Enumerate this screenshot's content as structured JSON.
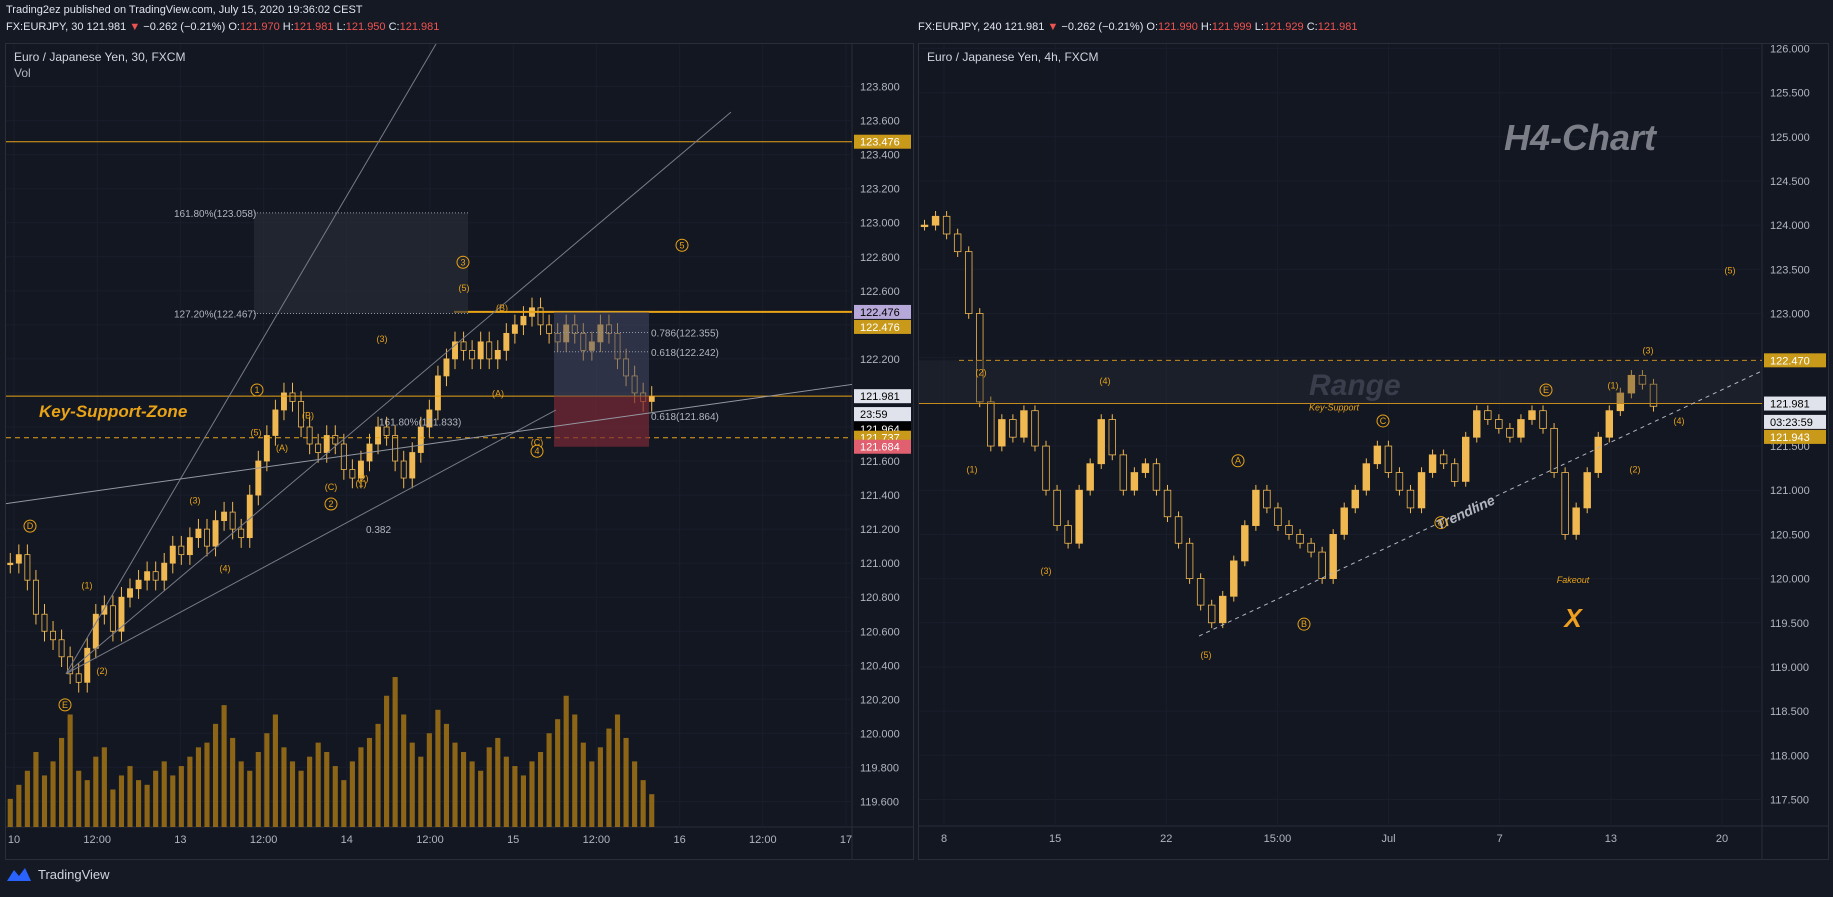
{
  "header": {
    "published": "Trading2ez published on TradingView.com, July 15, 2020 19:36:02 CEST",
    "left": {
      "symbol": "FX:EURJPY, 30",
      "price": "121.981",
      "arrow": "▼",
      "change": "−0.262 (−0.21%)",
      "o_label": "O:",
      "o": "121.970",
      "h_label": "H:",
      "h": "121.981",
      "l_label": "L:",
      "l": "121.950",
      "c_label": "C:",
      "c": "121.981"
    },
    "right": {
      "symbol": "FX:EURJPY, 240",
      "price": "121.981",
      "arrow": "▼",
      "change": "−0.262 (−0.21%)",
      "o_label": "O:",
      "o": "121.990",
      "h_label": "H:",
      "h": "121.999",
      "l_label": "L:",
      "l": "121.929",
      "c_label": "C:",
      "c": "121.981"
    }
  },
  "footer": {
    "brand": "TradingView"
  },
  "colors": {
    "bg": "#131722",
    "grid": "#1e2230",
    "candle": "#f0b850",
    "accent": "#e8a317",
    "text": "#d1d4dc",
    "down": "#ef5350"
  },
  "chart_data": [
    {
      "type": "candlestick",
      "title": "Euro / Japanese Yen, 30, FXCM",
      "subtitle": "Vol",
      "y_ticks": [
        "123.800",
        "123.600",
        "123.400",
        "123.200",
        "123.000",
        "122.800",
        "122.600",
        "122.400",
        "122.200",
        "122.000",
        "121.800",
        "121.600",
        "121.400",
        "121.200",
        "121.000",
        "120.800",
        "120.600",
        "120.400",
        "120.200",
        "120.000",
        "119.800",
        "119.600"
      ],
      "ylim": [
        119.45,
        124.05
      ],
      "x_ticks": [
        "10",
        "12:00",
        "13",
        "12:00",
        "14",
        "12:00",
        "15",
        "12:00",
        "16",
        "12:00",
        "17"
      ],
      "price_labels": [
        {
          "value": 123.476,
          "text": "123.476",
          "color": "#c99a1a"
        },
        {
          "value": 122.476,
          "text": "122.476",
          "color": "#b6a8d8"
        },
        {
          "value": 122.476,
          "text": "122.476",
          "color": "#c99a1a",
          "offset": 1
        },
        {
          "value": 121.981,
          "text": "121.981",
          "color": "#e0e3eb"
        },
        {
          "value": 121.964,
          "text": "23:59",
          "color": "#e0e3eb",
          "offset": 1
        },
        {
          "value": 121.964,
          "text": "121.964",
          "color": "#000000",
          "offset": 2
        },
        {
          "value": 121.964,
          "text": "121.964",
          "color": "#c99a1a",
          "offset": 3
        },
        {
          "value": 121.737,
          "text": "121.737",
          "color": "#c99a1a"
        },
        {
          "value": 121.684,
          "text": "121.684",
          "color": "#e06070"
        }
      ],
      "fib_labels": [
        "161.80%(123.058)",
        "127.20%(122.467)",
        "0.786(122.355)",
        "0.618(122.242)",
        "0.618(121.864)",
        "161.80%(121.833)",
        "0.382"
      ],
      "annotation": "Key-Support-Zone",
      "waves": [
        "D",
        "E",
        "(1)",
        "(2)",
        "(3)",
        "(4)",
        "(5)",
        "1",
        "(A)",
        "(B)",
        "(C)",
        "2",
        "(1)",
        "(2)",
        "(3)",
        "(5)",
        "3",
        "(B)",
        "(A)",
        "4",
        "5",
        "(C)"
      ],
      "series": [
        {
          "values": [
            121.0,
            121.05,
            120.9,
            120.7,
            120.6,
            120.55,
            120.45,
            120.35,
            120.3,
            120.5,
            120.7,
            120.75,
            120.6,
            120.8,
            120.85,
            120.9,
            120.95,
            120.9,
            121.0,
            121.1,
            121.05,
            121.15,
            121.2,
            121.1,
            121.25,
            121.3,
            121.2,
            121.15,
            121.4,
            121.6,
            121.75,
            121.9,
            122.0,
            121.95,
            121.8,
            121.7,
            121.65,
            121.75,
            121.7,
            121.55,
            121.5,
            121.6,
            121.7,
            121.8,
            121.75,
            121.6,
            121.5,
            121.65,
            121.8,
            121.9,
            122.1,
            122.2,
            122.3,
            122.25,
            122.2,
            122.3,
            122.2,
            122.25,
            122.35,
            122.4,
            122.45,
            122.5,
            122.4,
            122.35,
            122.3,
            122.4,
            122.35,
            122.25,
            122.3,
            122.4,
            122.35,
            122.2,
            122.1,
            122.0,
            121.95,
            121.98
          ]
        }
      ],
      "volume": [
        30,
        45,
        60,
        80,
        55,
        70,
        95,
        120,
        60,
        50,
        75,
        85,
        40,
        55,
        65,
        50,
        45,
        60,
        70,
        55,
        65,
        75,
        85,
        90,
        110,
        130,
        95,
        70,
        60,
        80,
        100,
        120,
        85,
        70,
        60,
        75,
        90,
        80,
        65,
        50,
        70,
        85,
        95,
        110,
        140,
        160,
        120,
        90,
        75,
        100,
        125,
        110,
        90,
        80,
        70,
        60,
        85,
        95,
        75,
        65,
        55,
        70,
        80,
        100,
        115,
        140,
        120,
        90,
        70,
        85,
        105,
        120,
        95,
        70,
        50,
        35
      ]
    },
    {
      "type": "candlestick",
      "title": "Euro / Japanese Yen, 4h, FXCM",
      "watermark": "H4-Chart",
      "y_ticks": [
        "126.000",
        "125.500",
        "125.000",
        "124.500",
        "124.000",
        "123.500",
        "123.000",
        "122.500",
        "122.000",
        "121.500",
        "121.000",
        "120.500",
        "120.000",
        "119.500",
        "119.000",
        "118.500",
        "118.000",
        "117.500"
      ],
      "ylim": [
        117.2,
        126.05
      ],
      "x_ticks": [
        "8",
        "15",
        "22",
        "15:00",
        "Jul",
        "7",
        "13",
        "20"
      ],
      "price_labels": [
        {
          "value": 122.47,
          "text": "122.470",
          "color": "#c99a1a"
        },
        {
          "value": 121.981,
          "text": "121.981",
          "color": "#e0e3eb"
        },
        {
          "value": 121.943,
          "text": "03:23:59",
          "color": "#e0e3eb",
          "offset": 1
        },
        {
          "value": 121.943,
          "text": "121.943",
          "color": "#c99a1a",
          "offset": 2
        }
      ],
      "annotations": [
        "Range",
        "Key-Support",
        "Trendline",
        "Fakeout",
        "X"
      ],
      "waves": [
        "(2)",
        "(1)",
        "(3)",
        "(4)",
        "(5)",
        "A",
        "B",
        "C",
        "D",
        "E",
        "(1)",
        "(2)",
        "(3)",
        "(4)",
        "(5)"
      ],
      "series": [
        {
          "values": [
            124.0,
            124.1,
            123.9,
            123.7,
            123.0,
            122.0,
            121.5,
            121.8,
            121.6,
            121.9,
            121.5,
            121.0,
            120.6,
            120.4,
            121.0,
            121.3,
            121.8,
            121.4,
            121.0,
            121.2,
            121.3,
            121.0,
            120.7,
            120.4,
            120.0,
            119.7,
            119.5,
            119.8,
            120.2,
            120.6,
            121.0,
            120.8,
            120.6,
            120.5,
            120.4,
            120.3,
            120.0,
            120.5,
            120.8,
            121.0,
            121.3,
            121.5,
            121.2,
            121.0,
            120.8,
            121.2,
            121.4,
            121.3,
            121.1,
            121.6,
            121.9,
            121.8,
            121.7,
            121.6,
            121.8,
            121.9,
            121.7,
            121.2,
            120.5,
            120.8,
            121.2,
            121.6,
            121.9,
            122.1,
            122.3,
            122.2,
            121.95
          ]
        }
      ]
    }
  ]
}
